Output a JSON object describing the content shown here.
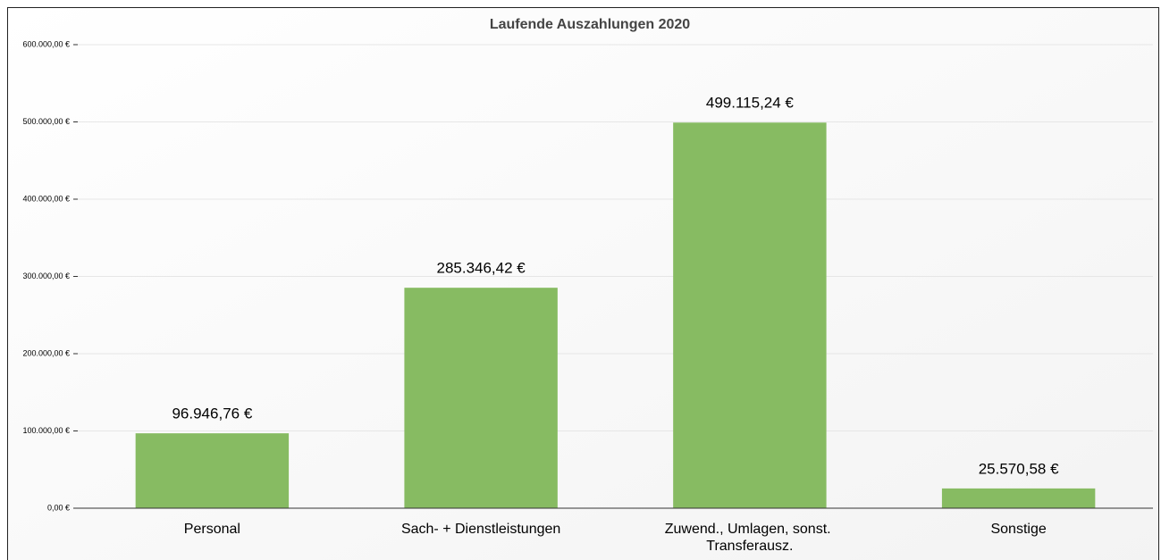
{
  "chart_data": {
    "type": "bar",
    "title": "Laufende Auszahlungen 2020",
    "categories": [
      "Personal",
      "Sach- + Dienstleistungen",
      "Zuwend., Umlagen, sonst. Transferausz.",
      "Sonstige"
    ],
    "values": [
      96946.76,
      285346.42,
      499115.24,
      25570.58
    ],
    "value_labels": [
      "96.946,76 €",
      "285.346,42 €",
      "499.115,24 €",
      "25.570,58 €"
    ],
    "color": "#87bb62",
    "ylim": [
      0,
      600000
    ],
    "yticks": [
      {
        "value": 0,
        "label": "0,00 €"
      },
      {
        "value": 100000,
        "label": "100.000,00 €"
      },
      {
        "value": 200000,
        "label": "200.000,00 €"
      },
      {
        "value": 300000,
        "label": "300.000,00 €"
      },
      {
        "value": 400000,
        "label": "400.000,00 €"
      },
      {
        "value": 500000,
        "label": "500.000,00 €"
      },
      {
        "value": 600000,
        "label": "600.000,00 €"
      }
    ],
    "grid": true
  }
}
